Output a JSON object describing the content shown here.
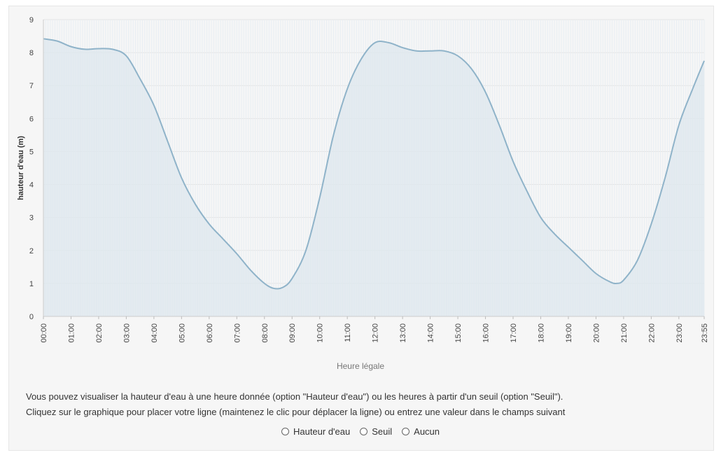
{
  "chart_data": {
    "type": "area",
    "ylabel": "hauteur d'eau (m)",
    "xlabel": "Heure légale",
    "ylim": [
      0,
      9
    ],
    "yticks": [
      0,
      1,
      2,
      3,
      4,
      5,
      6,
      7,
      8,
      9
    ],
    "xticks": [
      "00:00",
      "01:00",
      "02:00",
      "03:00",
      "04:00",
      "05:00",
      "06:00",
      "07:00",
      "08:00",
      "09:00",
      "10:00",
      "11:00",
      "12:00",
      "13:00",
      "14:00",
      "15:00",
      "16:00",
      "17:00",
      "18:00",
      "19:00",
      "20:00",
      "21:00",
      "22:00",
      "23:00",
      "23:55"
    ],
    "grid": true,
    "series": [
      {
        "color": "#8fb3c9",
        "fill": "#dde7ee",
        "points": [
          [
            "00:00",
            8.42
          ],
          [
            "00:30",
            8.35
          ],
          [
            "01:00",
            8.18
          ],
          [
            "01:30",
            8.1
          ],
          [
            "02:00",
            8.12
          ],
          [
            "02:30",
            8.1
          ],
          [
            "03:00",
            7.9
          ],
          [
            "03:30",
            7.2
          ],
          [
            "04:00",
            6.4
          ],
          [
            "04:30",
            5.3
          ],
          [
            "05:00",
            4.2
          ],
          [
            "05:30",
            3.4
          ],
          [
            "06:00",
            2.8
          ],
          [
            "06:30",
            2.35
          ],
          [
            "07:00",
            1.9
          ],
          [
            "07:30",
            1.4
          ],
          [
            "08:00",
            1.0
          ],
          [
            "08:20",
            0.85
          ],
          [
            "08:40",
            0.88
          ],
          [
            "09:00",
            1.15
          ],
          [
            "09:30",
            2.0
          ],
          [
            "10:00",
            3.6
          ],
          [
            "10:30",
            5.5
          ],
          [
            "11:00",
            6.9
          ],
          [
            "11:30",
            7.8
          ],
          [
            "12:00",
            8.3
          ],
          [
            "12:30",
            8.3
          ],
          [
            "13:00",
            8.15
          ],
          [
            "13:30",
            8.05
          ],
          [
            "14:00",
            8.05
          ],
          [
            "14:30",
            8.05
          ],
          [
            "15:00",
            7.9
          ],
          [
            "15:30",
            7.5
          ],
          [
            "16:00",
            6.8
          ],
          [
            "16:30",
            5.8
          ],
          [
            "17:00",
            4.7
          ],
          [
            "17:30",
            3.8
          ],
          [
            "18:00",
            3.0
          ],
          [
            "18:30",
            2.5
          ],
          [
            "19:00",
            2.1
          ],
          [
            "19:30",
            1.7
          ],
          [
            "20:00",
            1.3
          ],
          [
            "20:30",
            1.05
          ],
          [
            "20:45",
            1.0
          ],
          [
            "21:00",
            1.1
          ],
          [
            "21:30",
            1.7
          ],
          [
            "22:00",
            2.8
          ],
          [
            "22:30",
            4.2
          ],
          [
            "23:00",
            5.8
          ],
          [
            "23:30",
            6.9
          ],
          [
            "23:55",
            7.75
          ]
        ]
      }
    ]
  },
  "info": {
    "line1": "Vous pouvez visualiser la hauteur d'eau à une heure donnée (option \"Hauteur d'eau\") ou les heures à partir d'un seuil (option \"Seuil\").",
    "line2": "Cliquez sur le graphique pour placer votre ligne (maintenez le clic pour déplacer la ligne) ou entrez une valeur dans le champs suivant"
  },
  "options": [
    {
      "label": "Hauteur d'eau"
    },
    {
      "label": "Seuil"
    },
    {
      "label": "Aucun"
    }
  ]
}
